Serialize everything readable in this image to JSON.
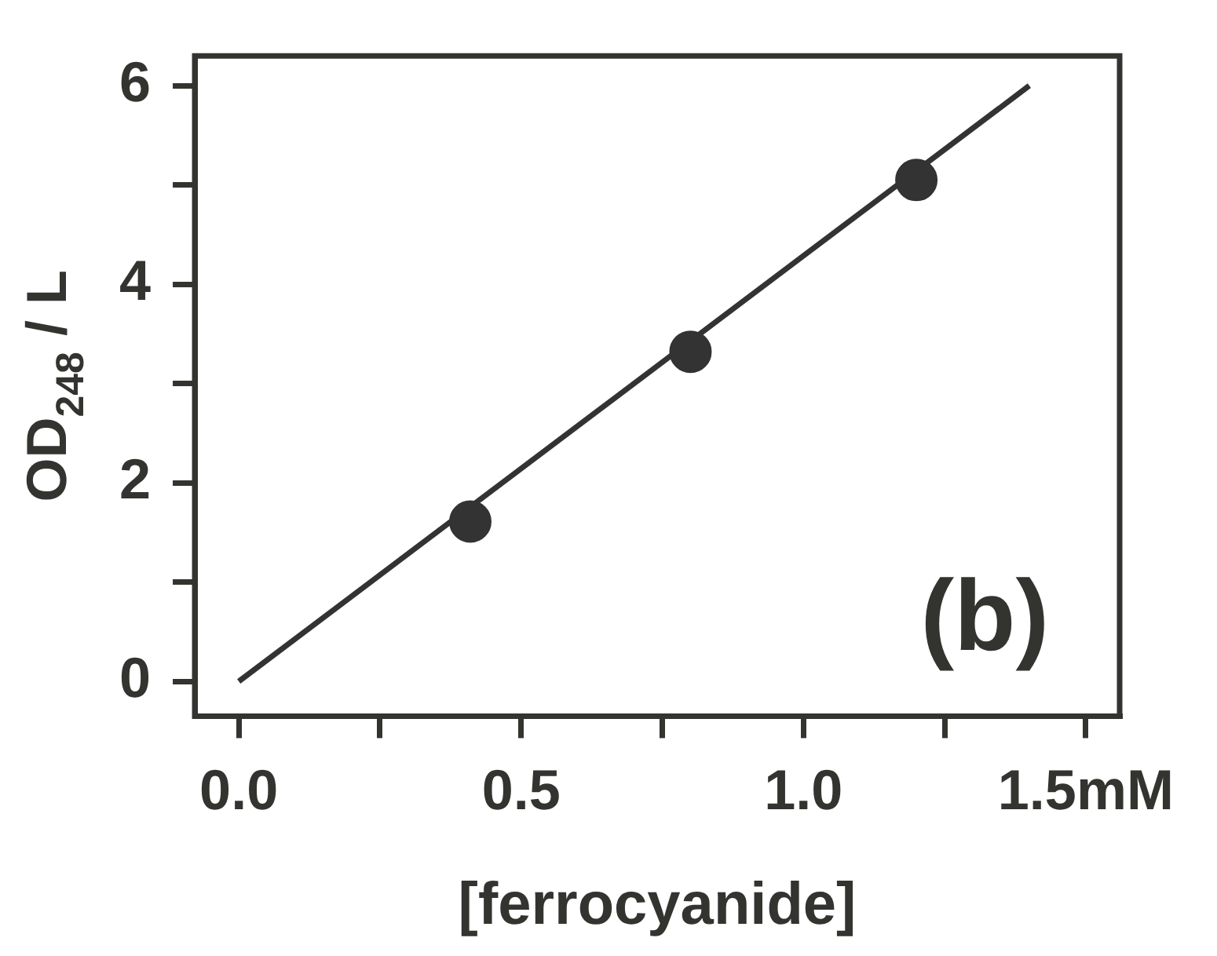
{
  "chart_data": {
    "type": "scatter",
    "xlabel": "[ferrocyanide]",
    "ylabel": "OD$_{248}$ / L",
    "annotations": [
      "(b)"
    ],
    "xlim": [
      -0.078,
      1.56
    ],
    "ylim": [
      -0.35,
      6.3
    ],
    "xticks": [
      {
        "value": 0,
        "label": "0.0"
      },
      {
        "value": 0.25,
        "label": null
      },
      {
        "value": 0.5,
        "label": "0.5"
      },
      {
        "value": 0.75,
        "label": null
      },
      {
        "value": 1,
        "label": "1.0"
      },
      {
        "value": 1.25,
        "label": null
      },
      {
        "value": 1.5,
        "label": "1.5mM"
      }
    ],
    "yticks": [
      0,
      {
        "value": 1,
        "label": null
      },
      2,
      {
        "value": 3,
        "label": null
      },
      4,
      {
        "value": 5,
        "label": null
      },
      6
    ],
    "grid": false,
    "legend": false,
    "series": [
      {
        "x": [
          0.41,
          0.8,
          1.2
        ],
        "values": [
          1.61,
          3.32,
          5.05
        ],
        "color": "#333333",
        "marker": "circle"
      },
      {
        "type": "line",
        "x": [
          0,
          1.4
        ],
        "values": [
          0,
          6
        ],
        "color": "#333333",
        "marker": "none",
        "line_style": "solid"
      }
    ]
  }
}
